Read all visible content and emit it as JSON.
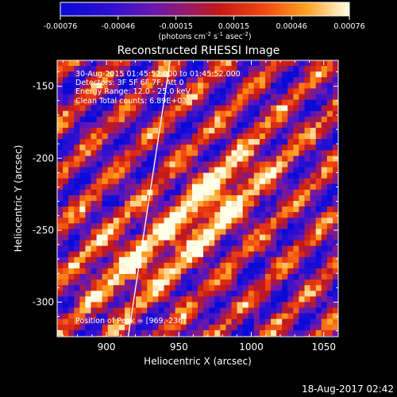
{
  "chart_data": {
    "type": "heatmap",
    "title": "Reconstructed RHESSI Image",
    "colorbar": {
      "ticks": [
        "-0.00076",
        "-0.00046",
        "-0.00015",
        "0.00015",
        "0.00046",
        "0.00076"
      ],
      "range": [
        -0.00076,
        0.00076
      ],
      "unit_prefix": "(photons cm",
      "unit_exp1": "-2",
      "unit_mid1": " s",
      "unit_exp2": "-1",
      "unit_mid2": " asec",
      "unit_exp3": "-2",
      "unit_suffix": ")"
    },
    "xlabel": "Heliocentric X (arcsec)",
    "ylabel": "Heliocentric Y (arcsec)",
    "x_ticks": [
      "900",
      "950",
      "1000",
      "1050"
    ],
    "x_tick_values": [
      900,
      950,
      1000,
      1050
    ],
    "y_ticks": [
      "-150",
      "-200",
      "-250",
      "-300"
    ],
    "y_tick_values": [
      -150,
      -200,
      -250,
      -300
    ],
    "xlim": [
      866,
      1060
    ],
    "ylim": [
      -324,
      -132
    ],
    "annotations": [
      "30-Aug-2015 01:45:52.000 to 01:45:52.000",
      "Detectors: 3F 5F 6F 7F, Att 0",
      "Energy Range: 12.0 - 25.0 keV",
      "Clean    Total counts: 6.89E+03"
    ],
    "peak_label": "Position of Peak = [969,-236]",
    "peak": [
      969,
      -236
    ],
    "limb_line": [
      [
        915,
        -324
      ],
      [
        944,
        -132
      ]
    ],
    "pattern": "diagonal striped CLEAN residual; strongest emission in a band centred near (969,-236)"
  },
  "footer": {
    "timestamp": "18-Aug-2017 02:42"
  }
}
